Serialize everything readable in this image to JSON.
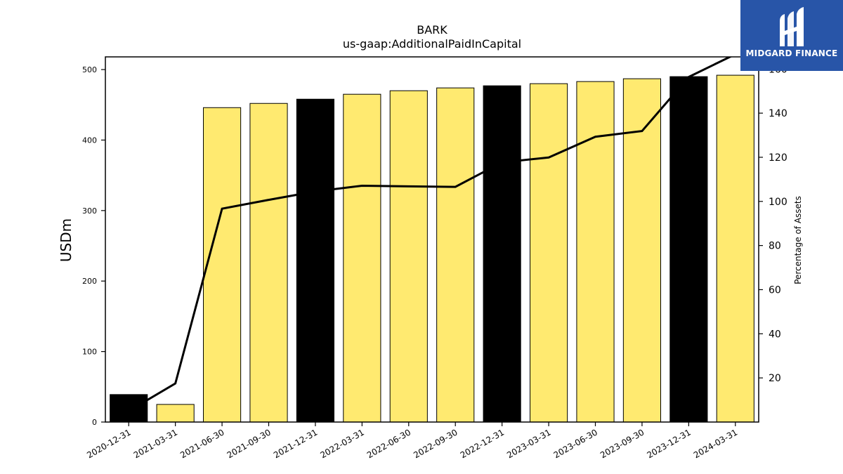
{
  "chart_data": {
    "type": "bar",
    "title": "BARK",
    "subtitle": "us-gaap:AdditionalPaidInCapital",
    "ylabel": "USDm",
    "y2label": "Percentage of Assets",
    "categories": [
      "2020-12-31",
      "2021-03-31",
      "2021-06-30",
      "2021-09-30",
      "2021-12-31",
      "2022-03-31",
      "2022-06-30",
      "2022-09-30",
      "2022-12-31",
      "2023-03-31",
      "2023-06-30",
      "2023-09-30",
      "2023-12-31",
      "2024-03-31"
    ],
    "series": [
      {
        "kind": "bar",
        "values": [
          39,
          25,
          446,
          452,
          458,
          465,
          470,
          474,
          477,
          480,
          483,
          487,
          490,
          492
        ],
        "colors": [
          "#000000",
          "#ffea70",
          "#ffea70",
          "#ffea70",
          "#000000",
          "#ffea70",
          "#ffea70",
          "#ffea70",
          "#000000",
          "#ffea70",
          "#ffea70",
          "#ffea70",
          "#000000",
          "#ffea70"
        ]
      },
      {
        "kind": "line",
        "axis": "right",
        "color": "#000000",
        "values": [
          5,
          17.5,
          96.7,
          100.7,
          104.5,
          107.1,
          106.8,
          106.6,
          117.7,
          119.9,
          129.3,
          131.9,
          156.4,
          166.7
        ]
      }
    ],
    "ylim": [
      0,
      518
    ],
    "yticks": [
      0,
      100,
      200,
      300,
      400,
      500
    ],
    "y2lim": [
      0,
      165.5
    ],
    "y2ticks": [
      20,
      40,
      60,
      80,
      100,
      120,
      140,
      160
    ],
    "grid": false
  },
  "logo": {
    "text": "MIDGARD FINANCE",
    "bg_color": "#2855a8"
  }
}
